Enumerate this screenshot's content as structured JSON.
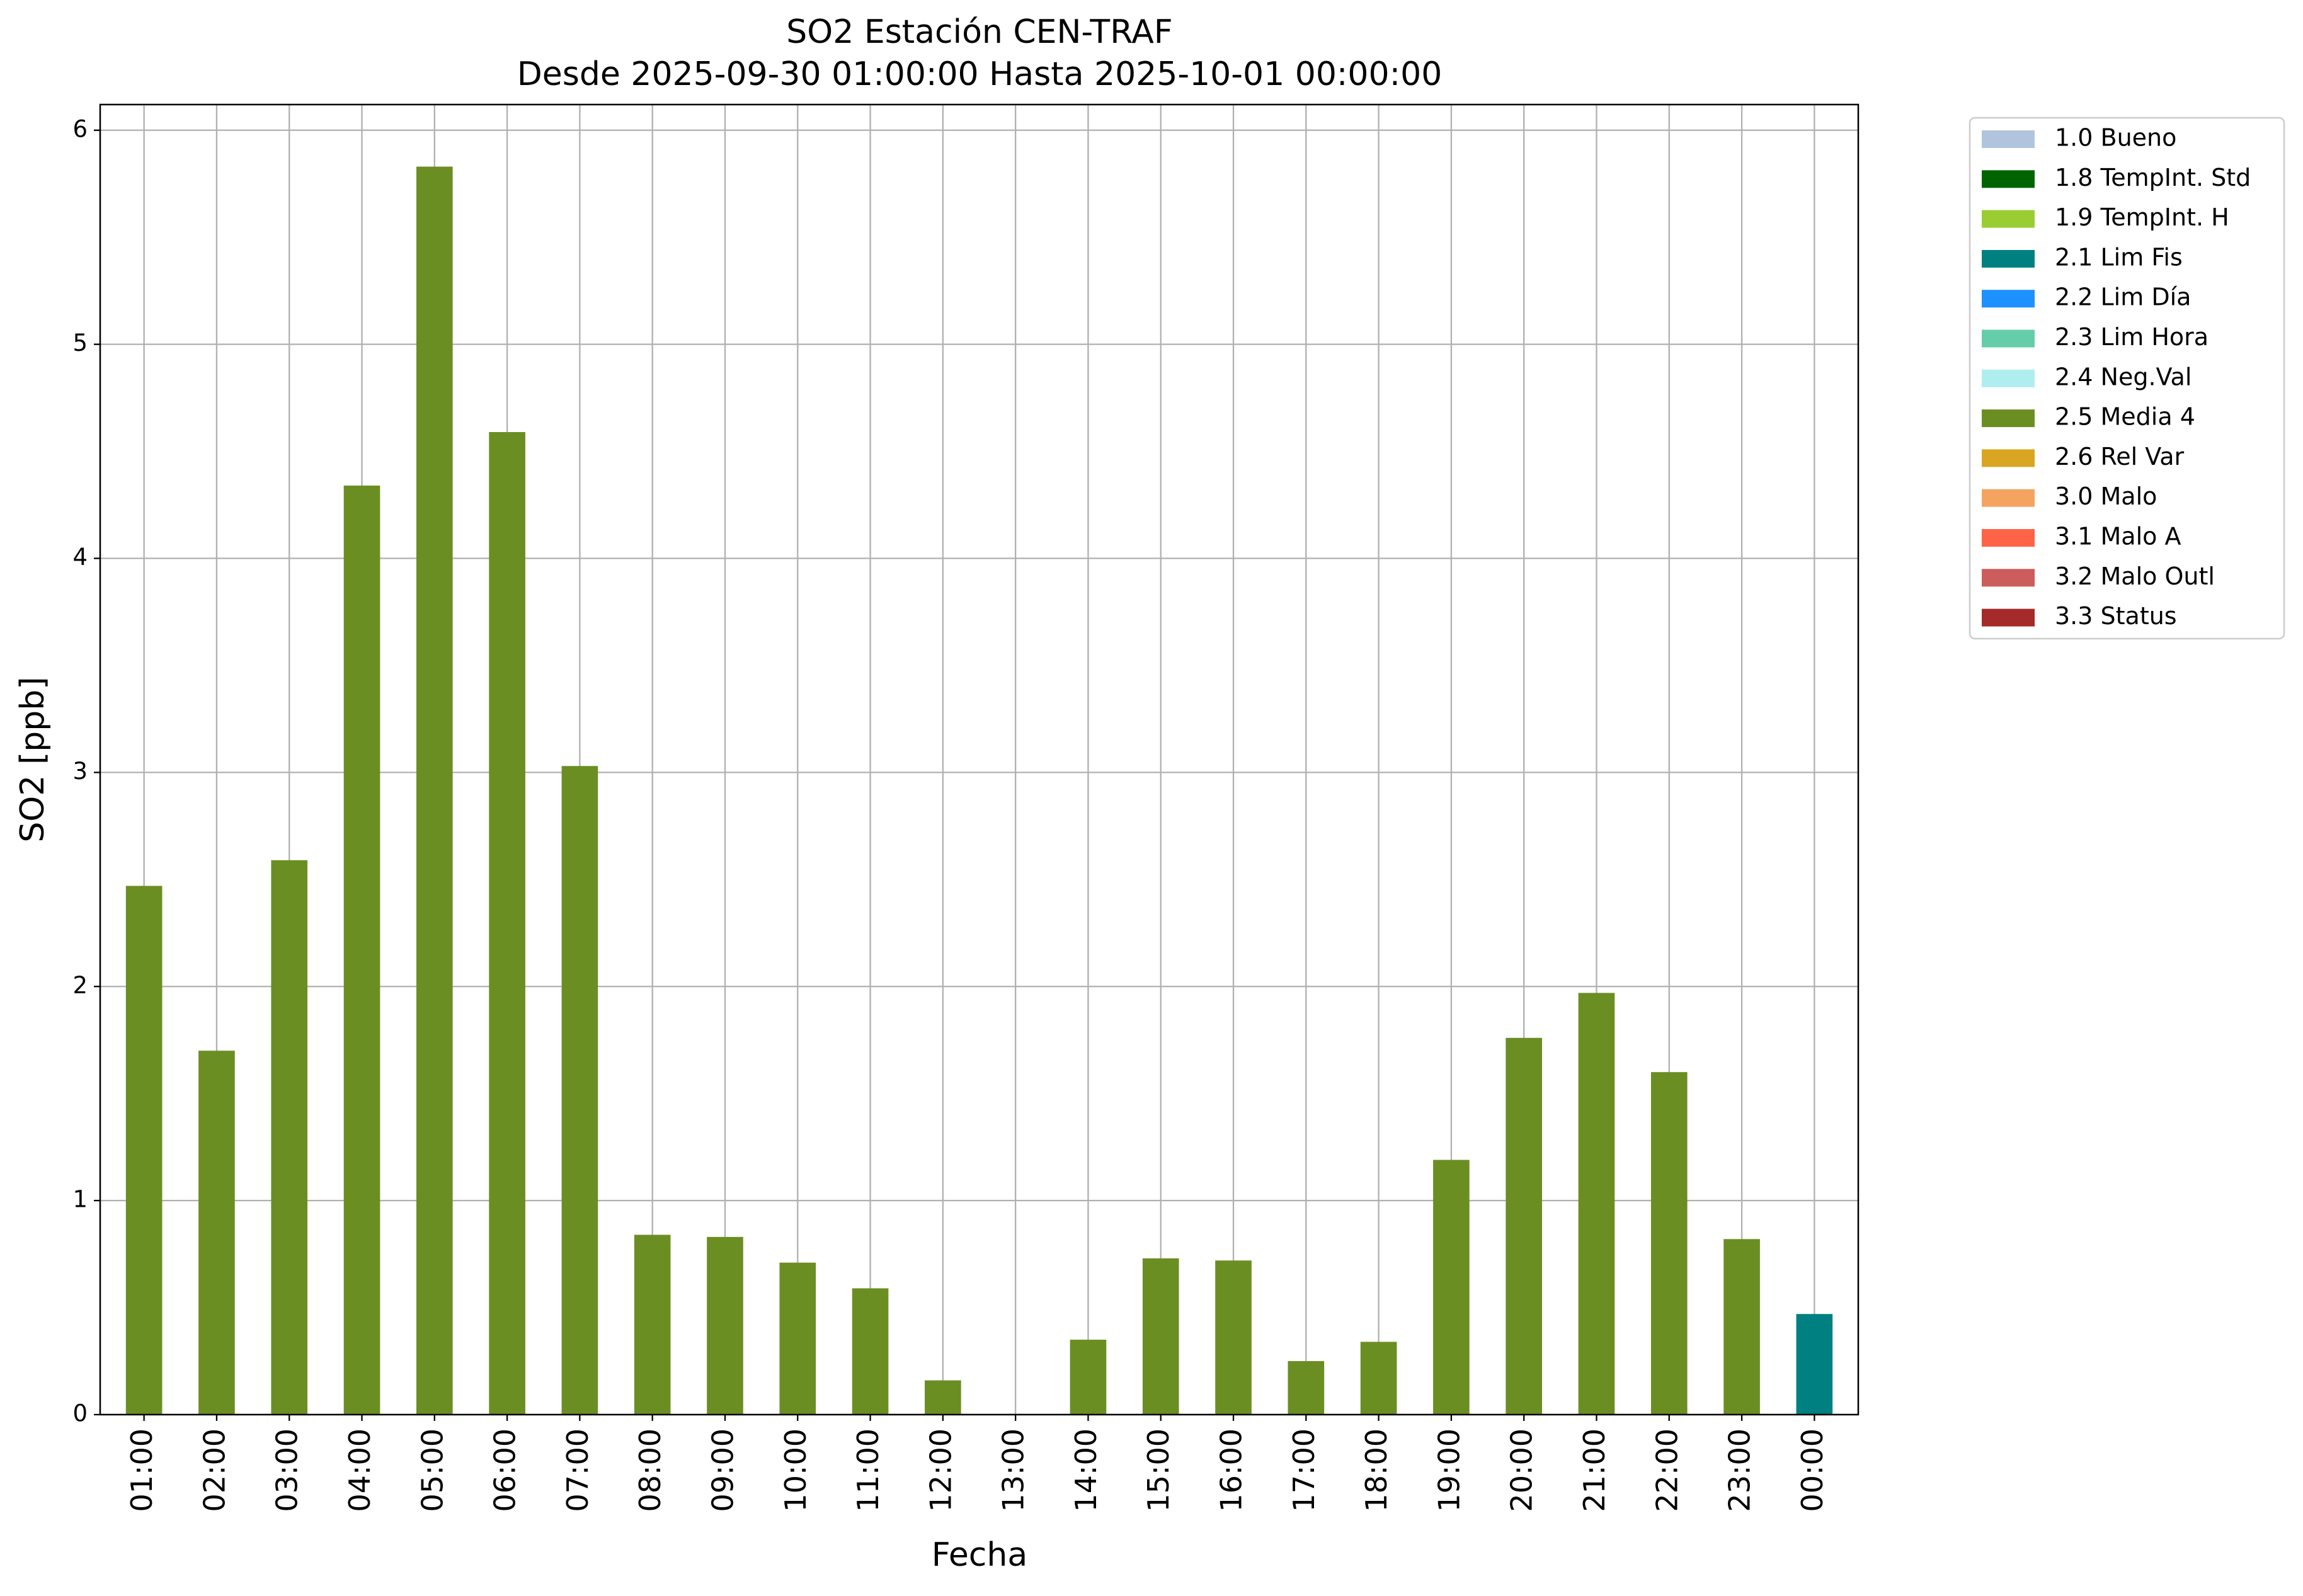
{
  "chart_data": {
    "type": "stacked-bar",
    "title": "SO2 Estación CEN-TRAF",
    "subtitle": "Desde 2025-09-30 01:00:00 Hasta 2025-10-01 00:00:00",
    "x_label": "Fecha",
    "y_label": "SO2 [ppb]",
    "categories": [
      "01:00",
      "02:00",
      "03:00",
      "04:00",
      "05:00",
      "06:00",
      "07:00",
      "08:00",
      "09:00",
      "10:00",
      "11:00",
      "12:00",
      "13:00",
      "14:00",
      "15:00",
      "16:00",
      "17:00",
      "18:00",
      "19:00",
      "20:00",
      "21:00",
      "22:00",
      "23:00",
      "00:00"
    ],
    "ylim": [
      0,
      6.12
    ],
    "yticks": [
      0,
      1,
      2,
      3,
      4,
      5,
      6
    ],
    "grid": true,
    "series": [
      {
        "name": "1.0 Bueno",
        "color": "#b0c4de",
        "values": [
          null,
          null,
          null,
          null,
          null,
          null,
          null,
          null,
          null,
          null,
          null,
          null,
          null,
          null,
          null,
          null,
          null,
          null,
          null,
          null,
          null,
          null,
          null,
          null
        ]
      },
      {
        "name": "1.8 TempInt. Std",
        "color": "#006400",
        "values": [
          null,
          null,
          null,
          null,
          null,
          null,
          null,
          null,
          null,
          null,
          null,
          null,
          null,
          null,
          null,
          null,
          null,
          null,
          null,
          null,
          null,
          null,
          null,
          null
        ]
      },
      {
        "name": "1.9 TempInt. H",
        "color": "#9acd32",
        "values": [
          null,
          null,
          null,
          null,
          null,
          null,
          null,
          null,
          null,
          null,
          null,
          null,
          null,
          null,
          null,
          null,
          null,
          null,
          null,
          null,
          null,
          null,
          null,
          null
        ]
      },
      {
        "name": "2.1 Lim Fis",
        "color": "#008080",
        "values": [
          null,
          null,
          null,
          null,
          null,
          null,
          null,
          null,
          null,
          null,
          null,
          null,
          null,
          null,
          null,
          null,
          null,
          null,
          null,
          null,
          null,
          null,
          null,
          0.47
        ]
      },
      {
        "name": "2.2 Lim Día",
        "color": "#1e90ff",
        "values": [
          null,
          null,
          null,
          null,
          null,
          null,
          null,
          null,
          null,
          null,
          null,
          null,
          null,
          null,
          null,
          null,
          null,
          null,
          null,
          null,
          null,
          null,
          null,
          null
        ]
      },
      {
        "name": "2.3 Lim Hora",
        "color": "#66cdaa",
        "values": [
          null,
          null,
          null,
          null,
          null,
          null,
          null,
          null,
          null,
          null,
          null,
          null,
          null,
          null,
          null,
          null,
          null,
          null,
          null,
          null,
          null,
          null,
          null,
          null
        ]
      },
      {
        "name": "2.4 Neg.Val",
        "color": "#afeeee",
        "values": [
          null,
          null,
          null,
          null,
          null,
          null,
          null,
          null,
          null,
          null,
          null,
          null,
          null,
          null,
          null,
          null,
          null,
          null,
          null,
          null,
          null,
          null,
          null,
          null
        ]
      },
      {
        "name": "2.5 Media 4",
        "color": "#6b8e23",
        "values": [
          2.47,
          1.7,
          2.59,
          4.34,
          5.83,
          4.59,
          3.03,
          0.84,
          0.83,
          0.71,
          0.59,
          0.16,
          null,
          0.35,
          0.73,
          0.72,
          0.25,
          0.34,
          1.19,
          1.76,
          1.97,
          1.6,
          0.82,
          null
        ]
      },
      {
        "name": "2.6 Rel Var",
        "color": "#daa520",
        "values": [
          null,
          null,
          null,
          null,
          null,
          null,
          null,
          null,
          null,
          null,
          null,
          null,
          null,
          null,
          null,
          null,
          null,
          null,
          null,
          null,
          null,
          null,
          null,
          null
        ]
      },
      {
        "name": "3.0 Malo",
        "color": "#f4a460",
        "values": [
          null,
          null,
          null,
          null,
          null,
          null,
          null,
          null,
          null,
          null,
          null,
          null,
          null,
          null,
          null,
          null,
          null,
          null,
          null,
          null,
          null,
          null,
          null,
          null
        ]
      },
      {
        "name": "3.1 Malo A",
        "color": "#ff6347",
        "values": [
          null,
          null,
          null,
          null,
          null,
          null,
          null,
          null,
          null,
          null,
          null,
          null,
          null,
          null,
          null,
          null,
          null,
          null,
          null,
          null,
          null,
          null,
          null,
          null
        ]
      },
      {
        "name": "3.2 Malo Outl",
        "color": "#cd5c5c",
        "values": [
          null,
          null,
          null,
          null,
          null,
          null,
          null,
          null,
          null,
          null,
          null,
          null,
          null,
          null,
          null,
          null,
          null,
          null,
          null,
          null,
          null,
          null,
          null,
          null
        ]
      },
      {
        "name": "3.3 Status",
        "color": "#a52a2a",
        "values": [
          null,
          null,
          null,
          null,
          null,
          null,
          null,
          null,
          null,
          null,
          null,
          null,
          null,
          null,
          null,
          null,
          null,
          null,
          null,
          null,
          null,
          null,
          null,
          null
        ]
      }
    ]
  }
}
